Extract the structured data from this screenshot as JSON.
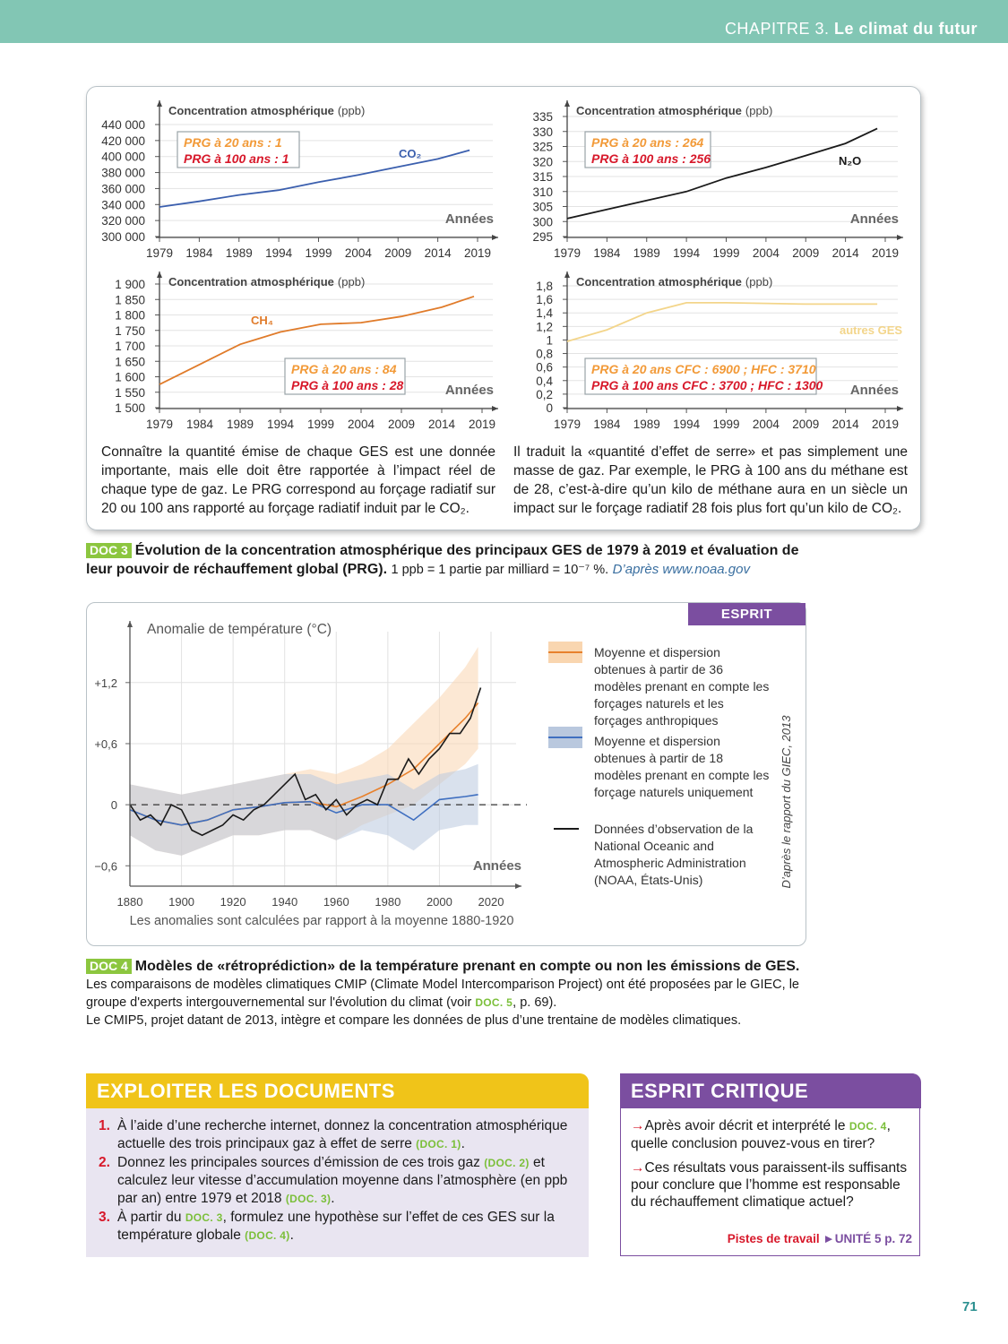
{
  "header": {
    "chapter": "CHAPITRE 3.",
    "title": "Le climat du futur"
  },
  "doc3": {
    "charts": [
      {
        "type": "line",
        "y_label": "Concentration atmosphérique",
        "y_unit": "(ppb)",
        "x_label": "Années",
        "grid": true,
        "x": [
          1979,
          1984,
          1989,
          1994,
          1999,
          2004,
          2009,
          2014,
          2018
        ],
        "series": [
          {
            "name": "CO₂",
            "color": "#3b5fae",
            "values": [
              337000,
              344000,
              352000,
              358000,
              368000,
              377000,
              387000,
              397000,
              408000
            ]
          }
        ],
        "xlim": [
          1979,
          2019
        ],
        "xticks": [
          1979,
          1984,
          1989,
          1994,
          1999,
          2004,
          2009,
          2014,
          2019
        ],
        "ylim": [
          300000,
          440000
        ],
        "yticks": [
          {
            "value": 300000,
            "label": "300 000"
          },
          {
            "value": 320000,
            "label": "320 000"
          },
          {
            "value": 340000,
            "label": "340 000"
          },
          {
            "value": 360000,
            "label": "360 000"
          },
          {
            "value": 380000,
            "label": "380 000"
          },
          {
            "value": 400000,
            "label": "400 000"
          },
          {
            "value": 420000,
            "label": "420 000"
          },
          {
            "value": 440000,
            "label": "440 000"
          }
        ],
        "annotations": [
          {
            "text": "PRG à 20 ans : 1",
            "color": "#f29a38"
          },
          {
            "text": "PRG à 100 ans : 1",
            "color": "#d7182a"
          }
        ]
      },
      {
        "type": "line",
        "y_label": "Concentration atmosphérique",
        "y_unit": "(ppb)",
        "x_label": "Années",
        "grid": true,
        "x": [
          1979,
          1984,
          1989,
          1994,
          1999,
          2004,
          2009,
          2014,
          2018
        ],
        "series": [
          {
            "name": "N₂O",
            "color": "#1a1a1a",
            "values": [
              301,
              304,
              307,
              310,
              314.5,
              318,
              322,
              326,
              331
            ]
          }
        ],
        "xlim": [
          1979,
          2019
        ],
        "xticks": [
          1979,
          1984,
          1989,
          1994,
          1999,
          2004,
          2009,
          2014,
          2019
        ],
        "ylim": [
          295,
          335
        ],
        "yticks": [
          295,
          300,
          305,
          310,
          315,
          320,
          325,
          330,
          335
        ],
        "annotations": [
          {
            "text": "PRG à 20 ans : 264",
            "color": "#f29a38"
          },
          {
            "text": "PRG à 100 ans : 256",
            "color": "#d7182a"
          }
        ]
      },
      {
        "type": "line",
        "y_label": "Concentration atmosphérique",
        "y_unit": "(ppb)",
        "x_label": "Années",
        "grid": true,
        "x": [
          1979,
          1984,
          1989,
          1994,
          1999,
          2004,
          2009,
          2014,
          2018
        ],
        "series": [
          {
            "name": "CH₄",
            "color": "#e07b2a",
            "values": [
              1575,
              1640,
              1705,
              1745,
              1770,
              1775,
              1795,
              1825,
              1860
            ]
          }
        ],
        "xlim": [
          1979,
          2019
        ],
        "xticks": [
          1979,
          1984,
          1989,
          1994,
          1999,
          2004,
          2009,
          2014,
          2019
        ],
        "ylim": [
          1500,
          1900
        ],
        "yticks": [
          {
            "value": 1500,
            "label": "1 500"
          },
          {
            "value": 1550,
            "label": "1 550"
          },
          {
            "value": 1600,
            "label": "1 600"
          },
          {
            "value": 1650,
            "label": "1 650"
          },
          {
            "value": 1700,
            "label": "1 700"
          },
          {
            "value": 1750,
            "label": "1 750"
          },
          {
            "value": 1800,
            "label": "1 800"
          },
          {
            "value": 1850,
            "label": "1 850"
          },
          {
            "value": 1900,
            "label": "1 900"
          }
        ],
        "annotations": [
          {
            "text": "PRG à 20 ans : 84",
            "color": "#f29a38"
          },
          {
            "text": "PRG à 100 ans : 28",
            "color": "#d7182a"
          }
        ]
      },
      {
        "type": "line",
        "y_label": "Concentration atmosphérique",
        "y_unit": "(ppb)",
        "x_label": "Années",
        "grid": true,
        "x": [
          1979,
          1984,
          1989,
          1994,
          1999,
          2004,
          2009,
          2014,
          2018
        ],
        "series": [
          {
            "name": "autres GES",
            "color": "#f3d58a",
            "values": [
              0.98,
              1.15,
              1.4,
              1.55,
              1.55,
              1.54,
              1.53,
              1.53,
              1.53
            ]
          }
        ],
        "xlim": [
          1979,
          2019
        ],
        "xticks": [
          1979,
          1984,
          1989,
          1994,
          1999,
          2004,
          2009,
          2014,
          2019
        ],
        "ylim": [
          0,
          1.8
        ],
        "yticks": [
          0,
          {
            "value": 0.2,
            "label": "0,2"
          },
          {
            "value": 0.4,
            "label": "0,4"
          },
          {
            "value": 0.6,
            "label": "0,6"
          },
          {
            "value": 0.8,
            "label": "0,8"
          },
          1,
          {
            "value": 1.2,
            "label": "1,2"
          },
          {
            "value": 1.4,
            "label": "1,4"
          },
          {
            "value": 1.6,
            "label": "1,6"
          },
          {
            "value": 1.8,
            "label": "1,8"
          }
        ],
        "annotations": [
          {
            "text": "PRG à 20 ans CFC : 6900 ; HFC : 3710",
            "color": "#f29a38"
          },
          {
            "text": "PRG à 100 ans CFC : 3700 ; HFC : 1300",
            "color": "#d7182a"
          }
        ]
      }
    ],
    "text": [
      "Connaître la quantité émise de chaque GES est une donnée importante, mais elle doit être rapportée à l’impact réel de chaque type de gaz. Le PRG correspond au forçage radiatif sur 20 ou 100 ans rapporté au forçage radiatif induit par le CO₂.",
      "Il traduit la «quantité d’effet de serre» et pas simplement une masse de gaz. Par exemple, le PRG à 100 ans du méthane est de 28, c’est-à-dire qu’un kilo de méthane aura en un siècle un impact sur le forçage radiatif 28 fois plus fort qu’un kilo de CO₂."
    ],
    "caption": {
      "label": "DOC 3",
      "title": "Évolution de la concentration atmosphérique des principaux GES de 1979 à 2019 et évaluation de leur pouvoir de réchauffement global (PRG).",
      "note": "1 ppb = 1 partie par milliard = 10⁻⁷ %.",
      "source": "D’après www.noaa.gov"
    }
  },
  "doc4": {
    "badge": "ESPRIT CRITIQUE",
    "chart": {
      "type": "line",
      "y_label": "Anomalie de température (°C)",
      "x_label": "Années",
      "note": "Les anomalies sont calculées par rapport à la moyenne 1880-1920",
      "source": "D’après le rapport du GIEC, 2013",
      "grid": true,
      "xlim": [
        1880,
        2020
      ],
      "xticks": [
        1880,
        1900,
        1920,
        1940,
        1960,
        1980,
        2000,
        2020
      ],
      "ylim": [
        -0.8,
        1.7
      ],
      "yticks": [
        {
          "value": -0.6,
          "label": "−0,6"
        },
        0,
        {
          "value": 0.6,
          "label": "+0,6"
        },
        {
          "value": 1.2,
          "label": "+1,2"
        }
      ],
      "series": [
        {
          "name": "Moyenne et dispersion obtenues à partir de 36 modèles prenant en compte les forçages naturels et les forçages anthropiques",
          "color": "#e8812c",
          "band_color": "#f9d6b0",
          "x": [
            1880,
            1890,
            1900,
            1910,
            1920,
            1930,
            1940,
            1950,
            1960,
            1970,
            1980,
            1990,
            2000,
            2010,
            2015
          ],
          "values": [
            -0.05,
            -0.15,
            -0.2,
            -0.15,
            -0.05,
            -0.02,
            0.02,
            0.03,
            -0.02,
            0.08,
            0.2,
            0.35,
            0.6,
            0.85,
            1.0
          ],
          "low": [
            -0.3,
            -0.45,
            -0.5,
            -0.4,
            -0.3,
            -0.3,
            -0.25,
            -0.25,
            -0.35,
            -0.2,
            -0.1,
            0.0,
            0.2,
            0.4,
            0.55
          ],
          "high": [
            0.2,
            0.15,
            0.1,
            0.15,
            0.2,
            0.25,
            0.3,
            0.35,
            0.3,
            0.4,
            0.55,
            0.8,
            1.05,
            1.35,
            1.55
          ]
        },
        {
          "name": "Moyenne et dispersion obtenues à partir de 18 modèles prenant en compte les forçage naturels uniquement",
          "color": "#3f6fc0",
          "band_color": "#b9c8de",
          "x": [
            1880,
            1890,
            1900,
            1910,
            1920,
            1930,
            1940,
            1950,
            1960,
            1970,
            1980,
            1990,
            2000,
            2010,
            2015
          ],
          "values": [
            -0.05,
            -0.15,
            -0.2,
            -0.15,
            -0.05,
            -0.02,
            0.02,
            0.03,
            -0.08,
            0.0,
            0.0,
            -0.15,
            0.05,
            0.08,
            0.1
          ],
          "low": [
            -0.3,
            -0.45,
            -0.5,
            -0.4,
            -0.3,
            -0.3,
            -0.25,
            -0.25,
            -0.35,
            -0.25,
            -0.3,
            -0.45,
            -0.25,
            -0.2,
            -0.2
          ],
          "high": [
            0.2,
            0.15,
            0.1,
            0.15,
            0.2,
            0.25,
            0.3,
            0.3,
            0.2,
            0.25,
            0.3,
            0.15,
            0.3,
            0.35,
            0.4
          ]
        },
        {
          "name": "Données d’observation de la National Oceanic and Atmospheric Administration (NOAA, États-Unis)",
          "color": "#1a1a1a",
          "x": [
            1880,
            1884,
            1888,
            1892,
            1896,
            1900,
            1904,
            1908,
            1912,
            1916,
            1920,
            1924,
            1928,
            1932,
            1936,
            1940,
            1944,
            1948,
            1952,
            1956,
            1960,
            1964,
            1968,
            1972,
            1976,
            1980,
            1984,
            1988,
            1992,
            1996,
            2000,
            2004,
            2008,
            2012,
            2016
          ],
          "values": [
            0.0,
            -0.15,
            -0.1,
            -0.2,
            0.0,
            -0.05,
            -0.25,
            -0.3,
            -0.25,
            -0.2,
            -0.1,
            -0.15,
            -0.05,
            0.0,
            0.1,
            0.2,
            0.3,
            0.05,
            0.1,
            -0.05,
            0.05,
            -0.1,
            0.0,
            0.05,
            0.0,
            0.25,
            0.25,
            0.45,
            0.3,
            0.45,
            0.55,
            0.7,
            0.7,
            0.85,
            1.15
          ]
        }
      ]
    },
    "caption": {
      "label": "DOC 4",
      "title": "Modèles de «rétroprédiction» de la température prenant en compte ou non les émissions de GES.",
      "body": [
        {
          "text": "Les comparaisons de modèles climatiques CMIP (Climate Model Intercomparison Project) ont été proposées par le GIEC, le groupe d'experts intergouvernemental sur l'évolution du climat (voir "
        },
        {
          "ref": "DOC. 5"
        },
        {
          "text": ", p. 69)."
        }
      ],
      "body2": "Le CMIP5, projet datant de 2013, intègre et compare les données de plus d’une trentaine de modèles climatiques."
    }
  },
  "exercises": {
    "title": "EXPLOITER LES DOCUMENTS",
    "items": [
      {
        "number": "1.",
        "parts": [
          {
            "text": "À l’aide d’une recherche internet, donnez la concentration atmosphérique actuelle des trois principaux gaz à effet de serre "
          },
          {
            "ref": "(DOC. 1)"
          },
          {
            "text": "."
          }
        ]
      },
      {
        "number": "2.",
        "parts": [
          {
            "text": "Donnez les principales sources d’émission de ces trois gaz "
          },
          {
            "ref": "(DOC. 2)"
          },
          {
            "text": " et calculez leur vitesse d’accumulation moyenne dans l’atmosphère (en ppb par an) entre 1979 et 2018 "
          },
          {
            "ref": "(DOC. 3)"
          },
          {
            "text": "."
          }
        ]
      },
      {
        "number": "3.",
        "parts": [
          {
            "text": "À partir du "
          },
          {
            "ref": "DOC. 3"
          },
          {
            "text": ", formulez une hypothèse sur l’effet de ces GES sur la température globale "
          },
          {
            "ref": "(DOC. 4)"
          },
          {
            "text": "."
          }
        ]
      }
    ]
  },
  "critique": {
    "title": "ESPRIT CRITIQUE",
    "items": [
      [
        {
          "text": "Après avoir décrit et interprété le "
        },
        {
          "ref": "DOC. 4"
        },
        {
          "text": ", quelle conclusion pouvez-vous en tirer?"
        }
      ],
      [
        {
          "text": "Ces résultats vous paraissent-ils suffisants pour conclure que l’homme est responsable du réchauffement climatique actuel?"
        }
      ]
    ],
    "footer": {
      "label": "Pistes de travail",
      "link": "UNITÉ 5 p. 72"
    }
  },
  "page_number": "71"
}
